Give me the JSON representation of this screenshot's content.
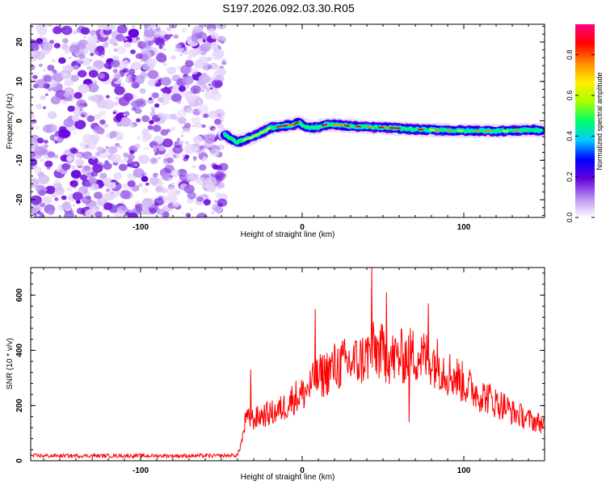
{
  "title": "S197.2026.092.03.30.R05",
  "chart_data": [
    {
      "type": "heatmap",
      "name": "spectrogram",
      "xlabel": "Height of straight line (km)",
      "ylabel": "Frequency (Hz)",
      "xlim": [
        -168,
        150
      ],
      "ylim": [
        -24.5,
        24.5
      ],
      "xticks": [
        -100,
        0,
        100
      ],
      "xtick_labels": [
        "-100",
        "0",
        "100"
      ],
      "yticks": [
        -20,
        -10,
        0,
        10,
        20
      ],
      "ytick_labels": [
        "-20",
        "-10",
        "0",
        "10",
        "20"
      ],
      "noise_region_x": [
        -168,
        -48
      ],
      "signal_track": {
        "x": [
          -48,
          -44,
          -40,
          -36,
          -30,
          -25,
          -20,
          -15,
          -10,
          -5,
          -2,
          0,
          5,
          10,
          15,
          20,
          30,
          40,
          50,
          60,
          70,
          80,
          90,
          100,
          110,
          120,
          130,
          140,
          148
        ],
        "y": [
          -3.5,
          -4.5,
          -5.5,
          -4.8,
          -4.0,
          -3.0,
          -1.8,
          -1.5,
          -1.2,
          -1.0,
          -0.2,
          -1.0,
          -1.8,
          -1.6,
          -0.9,
          -1.0,
          -1.3,
          -1.6,
          -1.7,
          -1.9,
          -2.2,
          -2.3,
          -2.4,
          -2.5,
          -2.5,
          -2.6,
          -2.5,
          -2.3,
          -2.4
        ]
      },
      "colorbar": {
        "label": "Normalized spectral amplitude",
        "range": [
          0,
          0.95
        ],
        "ticks": [
          0.0,
          0.2,
          0.4,
          0.6,
          0.8
        ],
        "tick_labels": [
          "0.0",
          "0.2",
          "0.4",
          "0.6",
          "0.8"
        ],
        "colors": [
          "#ffffff",
          "#b78ef0",
          "#6600dd",
          "#0000ff",
          "#00ccff",
          "#00ff66",
          "#aaff00",
          "#ffee00",
          "#ff8800",
          "#ff0000",
          "#ff0088"
        ]
      }
    },
    {
      "type": "line",
      "name": "snr",
      "color": "#ff0000",
      "xlabel": "Height of straight line (km)",
      "ylabel": "SNR (10 * v/v)",
      "xlim": [
        -168,
        150
      ],
      "ylim": [
        0,
        700
      ],
      "xticks": [
        -100,
        0,
        100
      ],
      "xtick_labels": [
        "-100",
        "0",
        "100"
      ],
      "yticks": [
        0,
        200,
        400,
        600
      ],
      "ytick_labels": [
        "0",
        "200",
        "400",
        "600"
      ],
      "x": [
        -168,
        -150,
        -130,
        -110,
        -90,
        -70,
        -50,
        -40,
        -37,
        -35,
        -30,
        -25,
        -20,
        -15,
        -10,
        -5,
        0,
        5,
        10,
        15,
        20,
        25,
        30,
        35,
        40,
        45,
        50,
        55,
        60,
        65,
        70,
        75,
        80,
        85,
        90,
        95,
        100,
        105,
        110,
        115,
        120,
        125,
        130,
        135,
        140,
        145,
        150
      ],
      "y": [
        18,
        18,
        18,
        18,
        18,
        18,
        18,
        20,
        80,
        150,
        150,
        165,
        170,
        180,
        200,
        230,
        240,
        270,
        300,
        320,
        340,
        350,
        355,
        360,
        380,
        400,
        390,
        370,
        375,
        380,
        385,
        375,
        370,
        350,
        320,
        305,
        280,
        260,
        240,
        230,
        210,
        200,
        175,
        165,
        150,
        140,
        135
      ],
      "peaks": [
        {
          "x": -32,
          "y": 330
        },
        {
          "x": 8,
          "y": 550
        },
        {
          "x": 43,
          "y": 700
        },
        {
          "x": 52,
          "y": 610
        },
        {
          "x": 78,
          "y": 570
        },
        {
          "x": 66,
          "y": 140
        }
      ]
    }
  ]
}
